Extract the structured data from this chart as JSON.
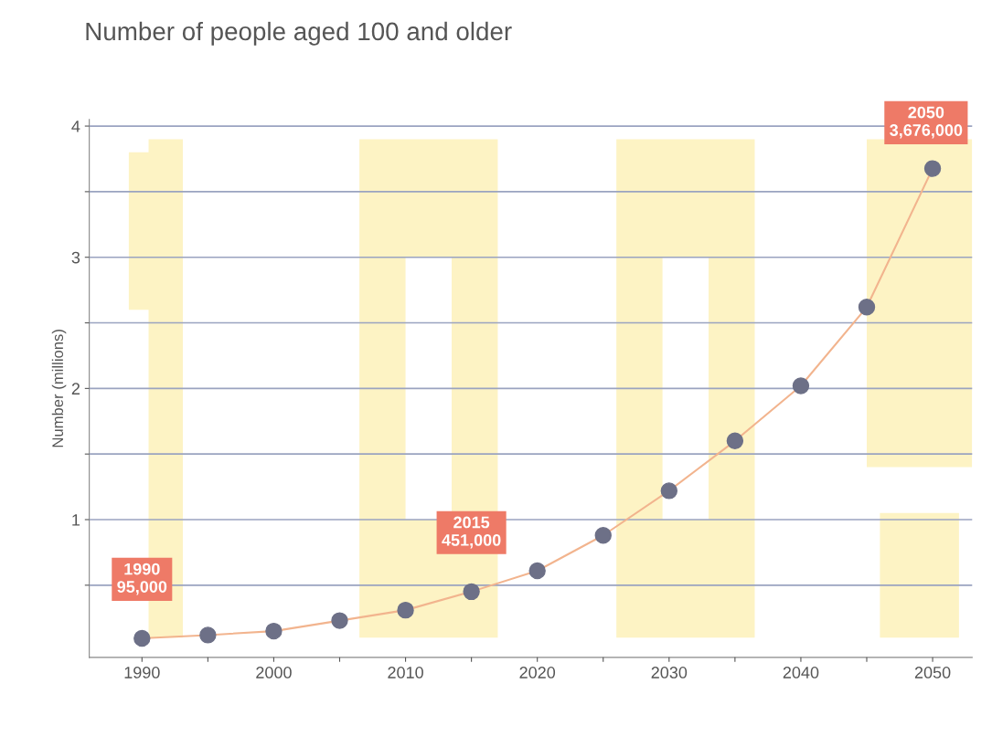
{
  "chart_data": {
    "type": "line",
    "title": "Number of people aged 100 and older",
    "ylabel": "Number (millions)",
    "x": [
      1990,
      1995,
      2000,
      2005,
      2010,
      2015,
      2020,
      2025,
      2030,
      2035,
      2040,
      2045,
      2050
    ],
    "series": [
      {
        "color": "#f2b48e",
        "colors": [
          "#6d7087",
          "#6d7087",
          "#6d7087",
          "#6d7087",
          "#6d7087",
          "#6d7087",
          "#6d7087",
          "#6d7087",
          "#6d7087",
          "#6d7087",
          "#6d7087",
          "#6d7087",
          "#6d7087"
        ],
        "values": [
          0.095,
          0.12,
          0.15,
          0.23,
          0.31,
          0.451,
          0.61,
          0.88,
          1.22,
          1.6,
          2.02,
          2.62,
          3.676
        ]
      }
    ],
    "marker": "circle",
    "line_style": "solid",
    "xlim": [
      1986,
      2053
    ],
    "ylim": [
      -0.05,
      4.05
    ],
    "xticks": [
      1990,
      {
        "value": 1995,
        "label": null
      },
      2000,
      {
        "value": 2005,
        "label": null
      },
      2010,
      {
        "value": 2015,
        "label": null
      },
      2020,
      {
        "value": 2025,
        "label": null
      },
      2030,
      {
        "value": 2035,
        "label": null
      },
      2040,
      {
        "value": 2045,
        "label": null
      },
      2050
    ],
    "yticks": [
      {
        "value": 0.5,
        "label": null
      },
      1,
      {
        "value": 1.5,
        "label": null
      },
      2,
      {
        "value": 2.5,
        "label": null
      },
      3,
      {
        "value": 3.5,
        "label": null
      },
      4
    ],
    "grid": "y",
    "annotations": [
      {
        "text": "1990\n95,000",
        "x": 1990,
        "y": 0.095
      },
      {
        "text": "2015\n451,000",
        "x": 2015,
        "y": 0.451
      },
      {
        "text": "2050\n3,676,000",
        "x": 2050,
        "y": 3.676
      }
    ]
  }
}
